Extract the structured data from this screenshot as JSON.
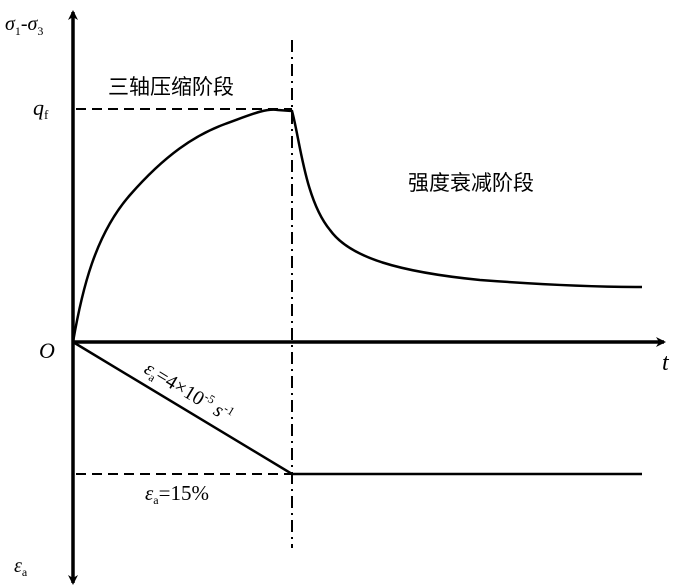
{
  "labels": {
    "y_axis_top": "σ",
    "y_axis_top_sub1": "1",
    "y_axis_dash": "-σ",
    "y_axis_top_sub3": "3",
    "y_axis_bottom": "ε",
    "y_axis_bottom_sub": "a",
    "x_axis": "t",
    "origin": "O",
    "qf": "q",
    "qf_sub": "f",
    "stage1": "三轴压缩阶段",
    "stage2": "强度衰减阶段",
    "rate_eps": "ε",
    "rate_sub": "a",
    "rate_value": "=4×10",
    "rate_exp": "-5",
    "rate_unit": " s",
    "rate_unit_exp": "-1",
    "strain_eps": "ε",
    "strain_sub": "a",
    "strain_value": "=15%"
  }
}
